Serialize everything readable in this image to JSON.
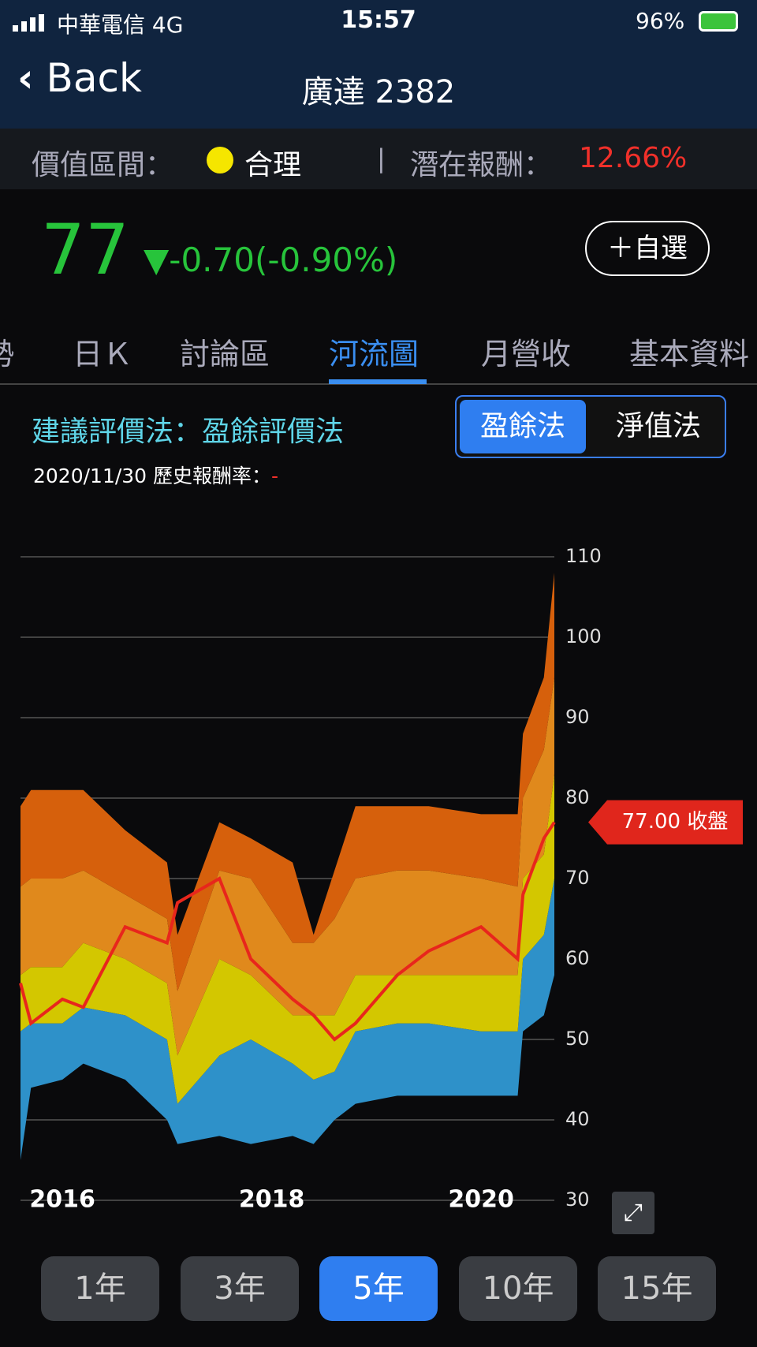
{
  "status": {
    "carrier": "中華電信 4G",
    "time": "15:57",
    "battery": "96%"
  },
  "nav": {
    "back": "Back",
    "title": "廣達 2382"
  },
  "valuation": {
    "label": "價值區間：",
    "zone": "合理",
    "return_label": "潛在報酬：",
    "return_value": "12.66%"
  },
  "quote": {
    "price": "77",
    "change": "▼-0.70(-0.90%)",
    "watch": "＋自選"
  },
  "tabs": [
    "勢",
    "日Ｋ",
    "討論區",
    "河流圖",
    "月營收",
    "基本資料"
  ],
  "method": {
    "text": "建議評價法：盈餘評價法",
    "options": [
      "盈餘法",
      "淨值法"
    ],
    "date_text": "2020/11/30 歷史報酬率：",
    "date_value": "-"
  },
  "chart_data": {
    "type": "river",
    "x": [
      2015.6,
      2015.7,
      2016.0,
      2016.2,
      2016.6,
      2017.0,
      2017.1,
      2017.5,
      2017.8,
      2018.2,
      2018.4,
      2018.6,
      2018.8,
      2019.2,
      2019.5,
      2020.0,
      2020.35,
      2020.4,
      2020.6,
      2020.7
    ],
    "xlim": [
      2015.6,
      2020.7
    ],
    "xticks": [
      2016,
      2018,
      2020
    ],
    "ylim": [
      30,
      110
    ],
    "yticks": [
      30,
      40,
      50,
      60,
      70,
      80,
      90,
      100,
      110
    ],
    "grid": true,
    "bands": [
      {
        "values": [
          35,
          44,
          45,
          47,
          45,
          40,
          37,
          38,
          37,
          38,
          37,
          40,
          42,
          43,
          43,
          43,
          43,
          51,
          53,
          58
        ]
      },
      {
        "color": "#2e91c9",
        "values": [
          51,
          52,
          52,
          54,
          53,
          50,
          42,
          48,
          50,
          47,
          45,
          46,
          51,
          52,
          52,
          51,
          51,
          60,
          63,
          70
        ]
      },
      {
        "color": "#d3c700",
        "values": [
          58,
          59,
          59,
          62,
          60,
          57,
          48,
          60,
          58,
          53,
          53,
          53,
          58,
          58,
          58,
          58,
          58,
          70,
          73,
          83
        ]
      },
      {
        "color": "#e0891c",
        "values": [
          69,
          70,
          70,
          71,
          68,
          65,
          56,
          71,
          70,
          62,
          62,
          65,
          70,
          71,
          71,
          70,
          69,
          80,
          86,
          95
        ]
      },
      {
        "color": "#d6600c",
        "values": [
          79,
          81,
          81,
          81,
          76,
          72,
          63,
          77,
          75,
          72,
          63,
          71,
          79,
          79,
          79,
          78,
          78,
          88,
          95,
          108
        ]
      }
    ],
    "price": {
      "color": "#e8261c",
      "values": [
        57,
        52,
        55,
        54,
        64,
        62,
        67,
        70,
        60,
        55,
        53,
        50,
        52,
        58,
        61,
        64,
        60,
        68,
        75,
        77
      ]
    },
    "close": 77,
    "close_label": "77.00 收盤"
  },
  "ranges": [
    "1年",
    "3年",
    "5年",
    "10年",
    "15年"
  ],
  "active_range": 2
}
